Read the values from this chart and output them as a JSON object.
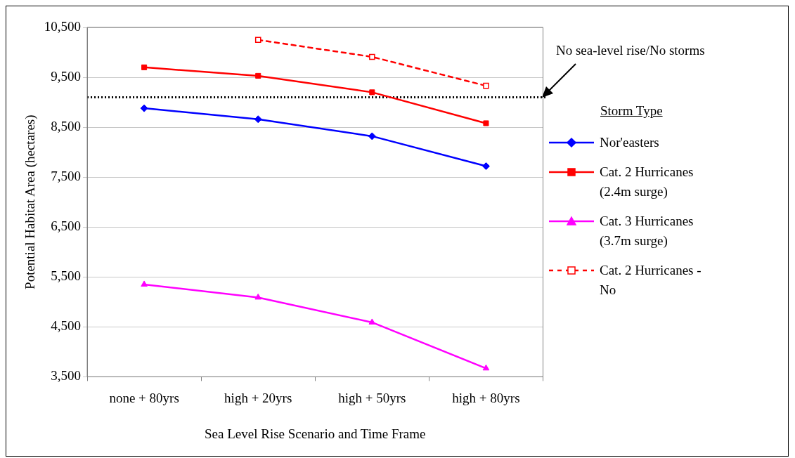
{
  "chart_data": {
    "type": "line",
    "xlabel": "Sea Level Rise Scenario and Time Frame",
    "ylabel": "Potential Habitat Area (hectares)",
    "legend_title": "Storm Type",
    "categories": [
      "none + 80yrs",
      "high + 20yrs",
      "high + 50yrs",
      "high + 80yrs"
    ],
    "series": [
      {
        "name": "Nor'easters",
        "color": "#0000ff",
        "marker": "diamond",
        "values": [
          8880,
          8660,
          8320,
          7720
        ]
      },
      {
        "name": "Cat. 2 Hurricanes (2.4m surge)",
        "color": "#ff0000",
        "marker": "square",
        "values": [
          9700,
          9530,
          9200,
          8580
        ]
      },
      {
        "name": "Cat. 3 Hurricanes (3.7m surge)",
        "color": "#ff00ff",
        "marker": "triangle",
        "values": [
          5350,
          5090,
          4590,
          3670
        ]
      },
      {
        "name": "Cat. 2 Hurricanes -No",
        "color": "#ff0000",
        "marker": "square",
        "line_style": "dashed",
        "values": [
          null,
          10250,
          9910,
          9330
        ]
      }
    ],
    "ylim": [
      3500,
      10500
    ],
    "yticks": [
      {
        "value": 3500,
        "label": "3,500"
      },
      {
        "value": 4500,
        "label": "4,500"
      },
      {
        "value": 5500,
        "label": "5,500"
      },
      {
        "value": 6500,
        "label": "6,500"
      },
      {
        "value": 7500,
        "label": "7,500"
      },
      {
        "value": 8500,
        "label": "8,500"
      },
      {
        "value": 9500,
        "label": "9,500"
      },
      {
        "value": 10500,
        "label": "10,500"
      }
    ],
    "ref_lines": [
      {
        "axis": "y",
        "value": 9100,
        "label": "No sea-level rise/No storms",
        "color": "#000000",
        "line_style": "dotted"
      }
    ],
    "grid": "y",
    "legend": "right"
  }
}
